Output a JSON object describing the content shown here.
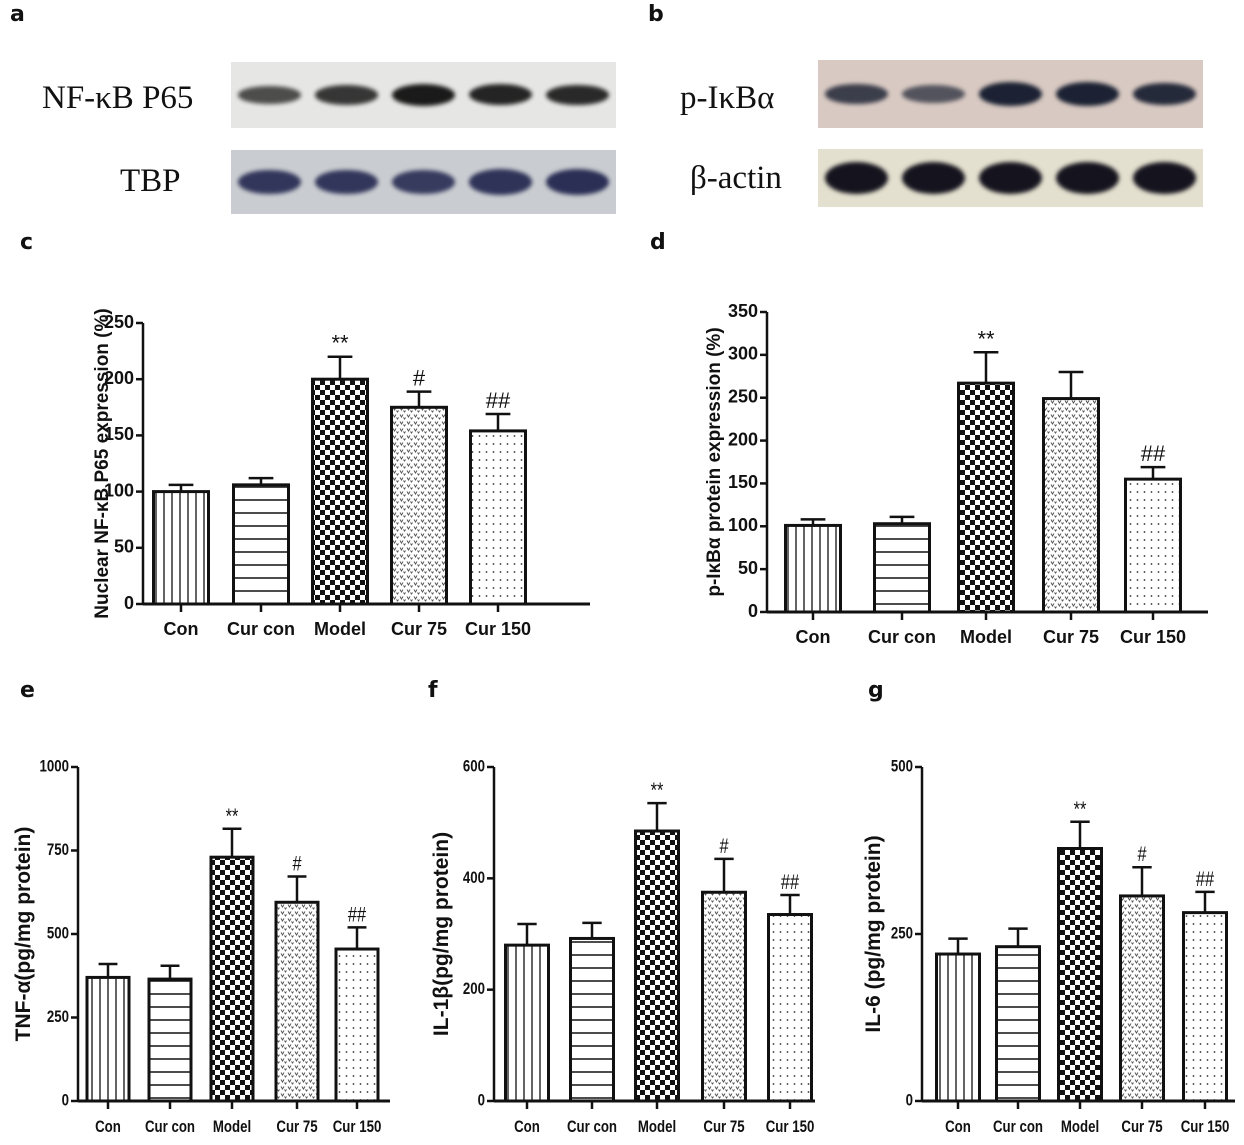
{
  "panels": {
    "a": {
      "letter": "a",
      "rows": [
        {
          "label": "NF-κB P65",
          "band_intensity": [
            0.55,
            0.75,
            1.0,
            0.9,
            0.85
          ],
          "band_color": "#1a1a1a",
          "background": "#e6e6e4"
        },
        {
          "label": "TBP",
          "band_intensity": [
            0.9,
            0.9,
            0.85,
            0.95,
            1.0
          ],
          "band_color": "#2b2f55",
          "background": "#c9ccd0"
        }
      ]
    },
    "b": {
      "letter": "b",
      "rows": [
        {
          "label": "p-IκBα",
          "band_intensity": [
            0.7,
            0.45,
            1.0,
            1.0,
            0.9
          ],
          "band_color": "#1c2233",
          "background": "#d8c9c2"
        },
        {
          "label": "β-actin",
          "band_intensity": [
            1.0,
            1.0,
            1.0,
            1.0,
            1.0
          ],
          "band_color": "#15131d",
          "background": "#e4e0cf"
        }
      ]
    },
    "c": {
      "letter": "c"
    },
    "d": {
      "letter": "d"
    },
    "e": {
      "letter": "e"
    },
    "f": {
      "letter": "f"
    },
    "g": {
      "letter": "g"
    }
  },
  "chart_data": [
    {
      "id": "c",
      "type": "bar",
      "title": "",
      "xlabel": "",
      "ylabel": "Nuclear NF-κB P65 expression (%)",
      "categories": [
        "Con",
        "Cur con",
        "Model",
        "Cur 75",
        "Cur 150"
      ],
      "values": [
        100,
        106,
        200,
        175,
        154
      ],
      "error_upper": [
        106,
        112,
        220,
        189,
        169
      ],
      "annotations": [
        "",
        "",
        "**",
        "#",
        "##"
      ],
      "ylim": [
        0,
        250
      ],
      "yticks": [
        0,
        50,
        100,
        150,
        200,
        250
      ],
      "patterns": [
        "vlines",
        "hlines",
        "checker",
        "hearts",
        "dots"
      ],
      "grid": false
    },
    {
      "id": "d",
      "type": "bar",
      "title": "",
      "xlabel": "",
      "ylabel": "p-IκBα protein expression (%)",
      "categories": [
        "Con",
        "Cur con",
        "Model",
        "Cur 75",
        "Cur 150"
      ],
      "values": [
        101,
        103,
        267,
        249,
        155
      ],
      "error_upper": [
        108,
        111,
        303,
        280,
        169
      ],
      "annotations": [
        "",
        "",
        "**",
        "",
        "##"
      ],
      "ylim": [
        0,
        350
      ],
      "yticks": [
        0,
        50,
        100,
        150,
        200,
        250,
        300,
        350
      ],
      "patterns": [
        "vlines",
        "hlines",
        "checker",
        "hearts",
        "dots"
      ],
      "grid": false
    },
    {
      "id": "e",
      "type": "bar",
      "title": "",
      "xlabel": "",
      "ylabel": "TNF-α(pg/mg protein)",
      "categories": [
        "Con",
        "Cur con",
        "Model",
        "Cur 75",
        "Cur 150"
      ],
      "values": [
        370,
        365,
        730,
        595,
        455
      ],
      "error_upper": [
        410,
        405,
        815,
        672,
        520
      ],
      "annotations": [
        "",
        "",
        "**",
        "#",
        "##"
      ],
      "ylim": [
        0,
        1000
      ],
      "yticks": [
        0,
        250,
        500,
        750,
        1000
      ],
      "patterns": [
        "vlines",
        "hlines",
        "checker",
        "hearts",
        "dots"
      ],
      "grid": false
    },
    {
      "id": "f",
      "type": "bar",
      "title": "",
      "xlabel": "",
      "ylabel": "IL-1β(pg/mg protein)",
      "categories": [
        "Con",
        "Cur con",
        "Model",
        "Cur 75",
        "Cur 150"
      ],
      "values": [
        280,
        292,
        485,
        375,
        335
      ],
      "error_upper": [
        318,
        320,
        535,
        435,
        370
      ],
      "annotations": [
        "",
        "",
        "**",
        "#",
        "##"
      ],
      "ylim": [
        0,
        600
      ],
      "yticks": [
        0,
        200,
        400,
        600
      ],
      "patterns": [
        "vlines",
        "hlines",
        "checker",
        "hearts",
        "dots"
      ],
      "grid": false
    },
    {
      "id": "g",
      "type": "bar",
      "title": "",
      "xlabel": "",
      "ylabel": "IL-6 (pg/mg protein)",
      "categories": [
        "Con",
        "Cur con",
        "Model",
        "Cur  75",
        "Cur 150"
      ],
      "values": [
        220,
        231,
        378,
        307,
        282
      ],
      "error_upper": [
        243,
        258,
        418,
        350,
        313
      ],
      "annotations": [
        "",
        "",
        "**",
        "#",
        "##"
      ],
      "ylim": [
        0,
        500
      ],
      "yticks": [
        0,
        250,
        500
      ],
      "patterns": [
        "vlines",
        "hlines",
        "checker",
        "hearts",
        "dots"
      ],
      "grid": false
    }
  ]
}
